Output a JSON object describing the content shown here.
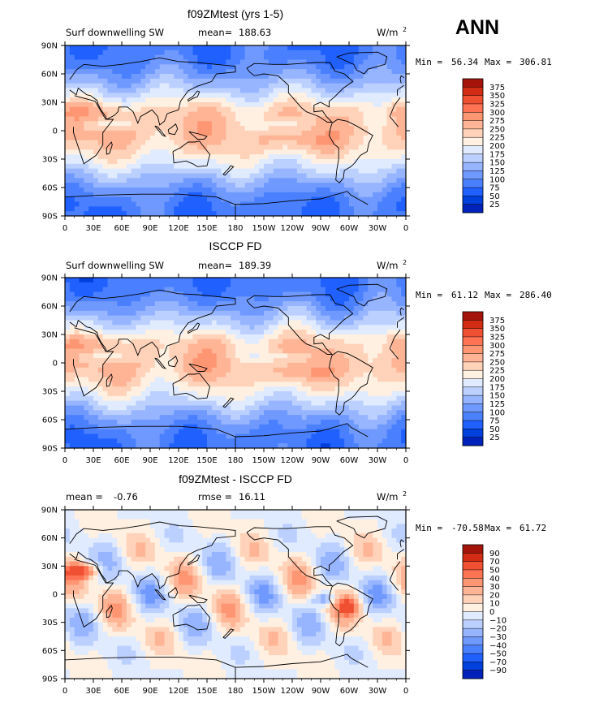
{
  "figure": {
    "season": "ANN",
    "colors": {
      "abs": [
        "#000080",
        "#0022bb",
        "#0040dd",
        "#2060ff",
        "#4a80ff",
        "#7099ff",
        "#96b4ff",
        "#bcd0ff",
        "#e1ebff",
        "#fff0e1",
        "#ffd2b9",
        "#ffb496",
        "#ff9673",
        "#ff7355",
        "#f05032",
        "#d22d14",
        "#a5140a",
        "#820000"
      ],
      "diff": [
        "#000080",
        "#0022bb",
        "#0040dd",
        "#2060ff",
        "#4a80ff",
        "#7099ff",
        "#96b4ff",
        "#bcd0ff",
        "#e1ebff",
        "#fff0e1",
        "#ffd2b9",
        "#ffb496",
        "#ff9673",
        "#ff7355",
        "#f05032",
        "#d22d14",
        "#a5140a",
        "#820000"
      ]
    }
  },
  "chart_data": [
    {
      "type": "heatmap",
      "title": "f09ZMtest (yrs 1-5)",
      "left_label": "Surf downwelling SW",
      "stat_label": "mean=",
      "stat_value": "188.63",
      "units": "W/m",
      "units_sup": "2",
      "min_label": "Min =",
      "min_value": "56.34",
      "max_label": "Max =",
      "max_value": "306.81",
      "x_ticks": [
        "0",
        "30E",
        "60E",
        "90E",
        "120E",
        "150E",
        "180",
        "150W",
        "120W",
        "90W",
        "60W",
        "30W",
        "0"
      ],
      "y_ticks": [
        "90N",
        "60N",
        "30N",
        "0",
        "30S",
        "60S",
        "90S"
      ],
      "colorbar_levels": [
        "375",
        "350",
        "325",
        "300",
        "275",
        "250",
        "225",
        "200",
        "175",
        "150",
        "125",
        "100",
        "75",
        "50",
        "25"
      ],
      "field": "abs",
      "bias": 0
    },
    {
      "type": "heatmap",
      "title": "ISCCP FD",
      "left_label": "Surf downwelling SW",
      "stat_label": "mean=",
      "stat_value": "189.39",
      "units": "W/m",
      "units_sup": "2",
      "min_label": "Min =",
      "min_value": "61.12",
      "max_label": "Max =",
      "max_value": "286.40",
      "x_ticks": [
        "0",
        "30E",
        "60E",
        "90E",
        "120E",
        "150E",
        "180",
        "150W",
        "120W",
        "90W",
        "60W",
        "30W",
        "0"
      ],
      "y_ticks": [
        "90N",
        "60N",
        "30N",
        "0",
        "30S",
        "60S",
        "90S"
      ],
      "colorbar_levels": [
        "375",
        "350",
        "325",
        "300",
        "275",
        "250",
        "225",
        "200",
        "175",
        "150",
        "125",
        "100",
        "75",
        "50",
        "25"
      ],
      "field": "abs",
      "bias": -1
    },
    {
      "type": "heatmap",
      "title": "f09ZMtest - ISCCP FD",
      "left_label": "mean =",
      "left_value": "-0.76",
      "stat_label": "rmse =",
      "stat_value": "16.11",
      "units": "W/m",
      "units_sup": "2",
      "min_label": "Min =",
      "min_value": "-70.58",
      "max_label": "Max =",
      "max_value": "61.72",
      "x_ticks": [
        "0",
        "30E",
        "60E",
        "90E",
        "120E",
        "150E",
        "180",
        "150W",
        "120W",
        "90W",
        "60W",
        "30W",
        "0"
      ],
      "y_ticks": [
        "90N",
        "60N",
        "30N",
        "0",
        "30S",
        "60S",
        "90S"
      ],
      "colorbar_levels": [
        "90",
        "70",
        "50",
        "40",
        "30",
        "20",
        "10",
        "0",
        "−10",
        "−20",
        "−30",
        "−40",
        "−50",
        "−70",
        "−90"
      ],
      "field": "diff",
      "bias": 0
    }
  ]
}
